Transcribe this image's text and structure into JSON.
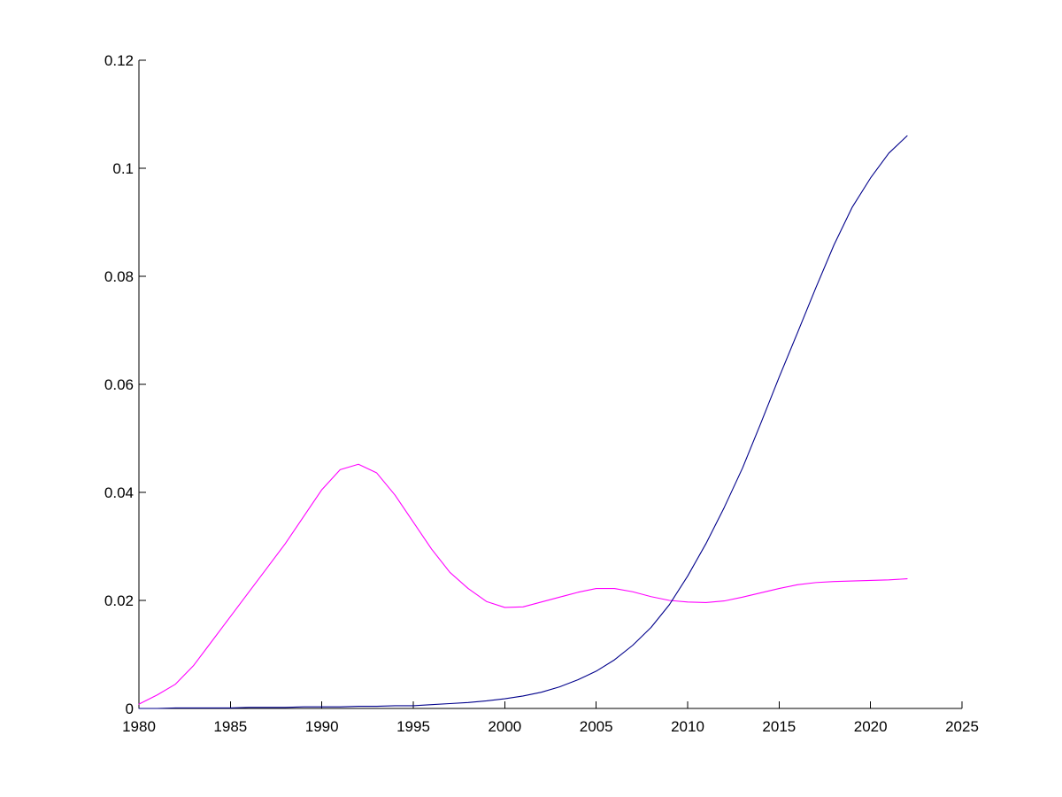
{
  "chart_data": {
    "type": "line",
    "title": "",
    "xlabel": "",
    "ylabel": "",
    "xlim": [
      1980,
      2025
    ],
    "ylim": [
      0,
      0.12
    ],
    "x_ticks": [
      1980,
      1985,
      1990,
      1995,
      2000,
      2005,
      2010,
      2015,
      2020,
      2025
    ],
    "x_tick_labels": [
      "1980",
      "1985",
      "1990",
      "1995",
      "2000",
      "2005",
      "2010",
      "2015",
      "2020",
      "2025"
    ],
    "y_ticks": [
      0,
      0.02,
      0.04,
      0.06,
      0.08,
      0.1,
      0.12
    ],
    "y_tick_labels": [
      "0",
      "0.02",
      "0.04",
      "0.06",
      "0.08",
      "0.1",
      "0.12"
    ],
    "grid": false,
    "legend": "none",
    "x": [
      1980,
      1981,
      1982,
      1983,
      1984,
      1985,
      1986,
      1987,
      1988,
      1989,
      1990,
      1991,
      1992,
      1993,
      1994,
      1995,
      1996,
      1997,
      1998,
      1999,
      2000,
      2001,
      2002,
      2003,
      2004,
      2005,
      2006,
      2007,
      2008,
      2009,
      2010,
      2011,
      2012,
      2013,
      2014,
      2015,
      2016,
      2017,
      2018,
      2019,
      2020,
      2021,
      2022
    ],
    "series": [
      {
        "color": "#ff00ff",
        "values": [
          0.0008,
          0.0025,
          0.0045,
          0.008,
          0.0125,
          0.017,
          0.0215,
          0.026,
          0.0305,
          0.0355,
          0.0405,
          0.0442,
          0.0452,
          0.0436,
          0.0395,
          0.0345,
          0.0295,
          0.0252,
          0.0222,
          0.0198,
          0.0187,
          0.0188,
          0.0197,
          0.0206,
          0.0215,
          0.0222,
          0.0222,
          0.0216,
          0.0207,
          0.02,
          0.0197,
          0.0196,
          0.0199,
          0.0206,
          0.0214,
          0.0222,
          0.0229,
          0.0233,
          0.0235,
          0.0236,
          0.0237,
          0.0238,
          0.024
        ]
      },
      {
        "color": "#00008b",
        "values": [
          0,
          0,
          0.0001,
          0.0001,
          0.0001,
          0.0001,
          0.0002,
          0.0002,
          0.0002,
          0.0003,
          0.0003,
          0.0003,
          0.0004,
          0.0004,
          0.0005,
          0.0005,
          0.0007,
          0.0009,
          0.0011,
          0.0014,
          0.0018,
          0.0023,
          0.003,
          0.004,
          0.0053,
          0.0069,
          0.009,
          0.0117,
          0.015,
          0.0192,
          0.0245,
          0.0305,
          0.0372,
          0.0445,
          0.0528,
          0.0613,
          0.0695,
          0.0778,
          0.0858,
          0.0928,
          0.0982,
          0.1028,
          0.106
        ]
      }
    ]
  }
}
